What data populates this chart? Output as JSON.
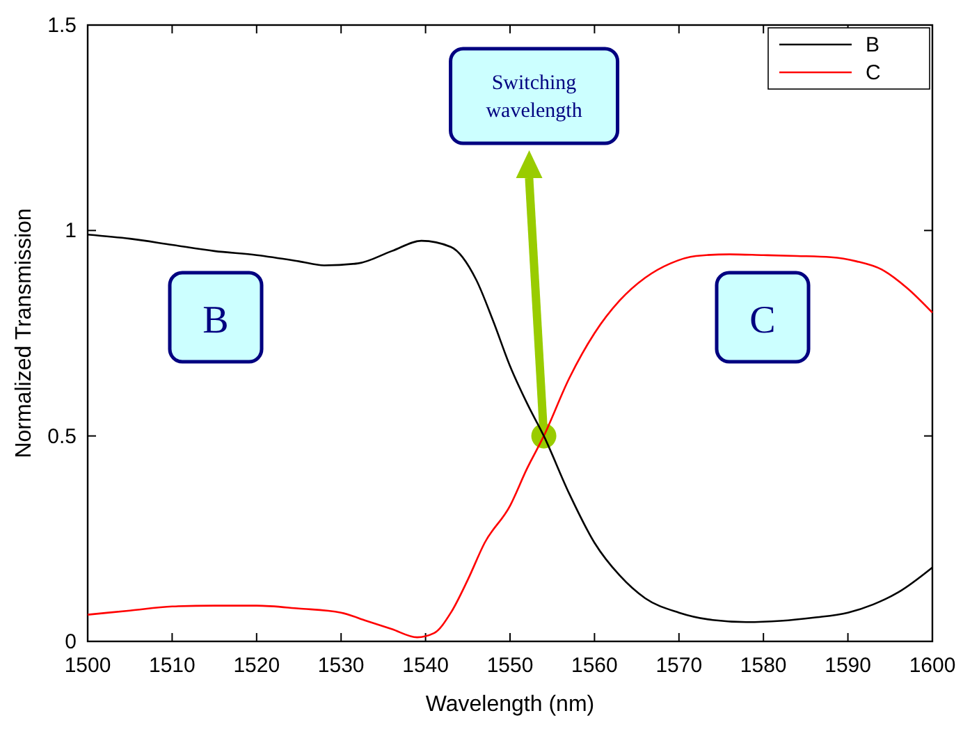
{
  "chart_data": {
    "type": "line",
    "xlabel": "Wavelength (nm)",
    "ylabel": "Normalized Transmission",
    "xlim": [
      1500,
      1600
    ],
    "ylim": [
      0,
      1.5
    ],
    "xticks": [
      1500,
      1510,
      1520,
      1530,
      1540,
      1550,
      1560,
      1570,
      1580,
      1590,
      1600
    ],
    "yticks": [
      0,
      {
        "value": 0.5,
        "label": "0.5"
      },
      1,
      {
        "value": 1.5,
        "label": "1.5"
      }
    ],
    "grid": false,
    "legend": "top right",
    "marker": "none",
    "line_style": "solid",
    "series": [
      {
        "name": "B",
        "color": "#000000",
        "x": [
          1500,
          1505,
          1510,
          1515,
          1520,
          1525,
          1528,
          1532,
          1536,
          1539.5,
          1543,
          1546,
          1548,
          1550,
          1552,
          1554,
          1557,
          1560,
          1563,
          1566,
          1570,
          1574,
          1578,
          1582,
          1586,
          1590,
          1593,
          1596,
          1600
        ],
        "values": [
          0.99,
          0.98,
          0.965,
          0.95,
          0.94,
          0.925,
          0.915,
          0.92,
          0.95,
          0.975,
          0.96,
          0.88,
          0.78,
          0.67,
          0.58,
          0.5,
          0.36,
          0.24,
          0.16,
          0.105,
          0.07,
          0.052,
          0.047,
          0.05,
          0.058,
          0.07,
          0.09,
          0.12,
          0.18
        ]
      },
      {
        "name": "C",
        "color": "#ff0000",
        "x": [
          1500,
          1505,
          1510,
          1515,
          1520,
          1525,
          1530,
          1533,
          1536,
          1539,
          1541,
          1543,
          1545,
          1547,
          1550,
          1552,
          1554,
          1557,
          1560,
          1563,
          1566,
          1569,
          1572,
          1576,
          1580,
          1584,
          1588,
          1591,
          1594,
          1597,
          1600
        ],
        "values": [
          0.065,
          0.075,
          0.085,
          0.087,
          0.087,
          0.08,
          0.07,
          0.05,
          0.03,
          0.01,
          0.02,
          0.07,
          0.15,
          0.24,
          0.33,
          0.42,
          0.5,
          0.64,
          0.75,
          0.83,
          0.885,
          0.92,
          0.938,
          0.942,
          0.94,
          0.938,
          0.935,
          0.925,
          0.905,
          0.86,
          0.8
        ]
      }
    ],
    "annotations": [
      "Switching wavelength",
      "B",
      "C"
    ]
  }
}
